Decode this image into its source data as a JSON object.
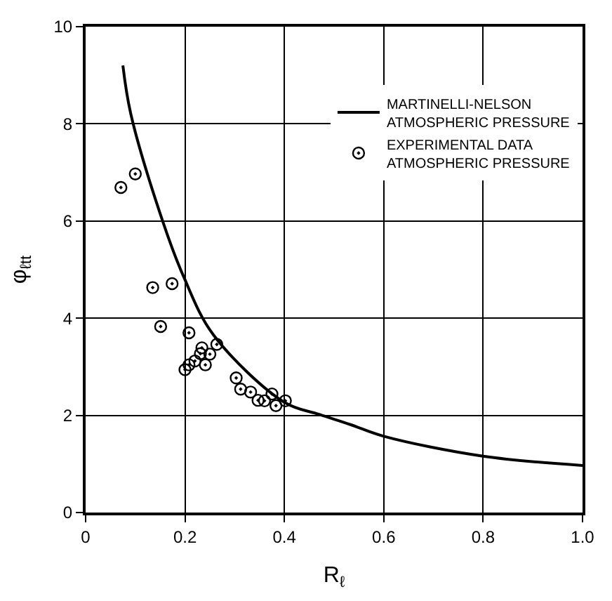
{
  "chart_data": {
    "type": "scatter",
    "xlabel": "R$_{ℓ}$",
    "ylabel": "φ$_{ℓtt}$",
    "xlim": [
      0,
      1
    ],
    "ylim": [
      0,
      10
    ],
    "xticks": [
      0,
      0.2,
      0.4,
      0.6,
      0.8,
      {
        "value": 1,
        "label": "1.0"
      }
    ],
    "yticks": [
      0,
      2,
      4,
      6,
      8,
      10
    ],
    "grid": true,
    "legend": "top right",
    "series": [
      {
        "name": "MARTINELLI-NELSON\nATMOSPHERIC PRESSURE",
        "type": "line",
        "color": "#000000",
        "marker": "none",
        "line_style": "solid",
        "x": [
          0.075,
          0.091,
          0.156,
          0.197,
          0.257,
          0.4,
          0.47,
          0.533,
          0.6,
          0.8,
          1.0
        ],
        "values": [
          9.2,
          8.2,
          5.97,
          4.86,
          3.66,
          2.27,
          2.02,
          1.81,
          1.57,
          1.16,
          0.97
        ]
      },
      {
        "name": "EXPERIMENTAL DATA\nATMOSPHERIC PRESSURE",
        "color": "#000000",
        "marker": "circle",
        "x": [
          0.071,
          0.1,
          0.135,
          0.174,
          0.151,
          0.208,
          0.264,
          0.234,
          0.231,
          0.25,
          0.22,
          0.208,
          0.2,
          0.241,
          0.303,
          0.312,
          0.332,
          0.347,
          0.36,
          0.375,
          0.383,
          0.402
        ],
        "values": [
          6.69,
          6.97,
          4.63,
          4.71,
          3.83,
          3.7,
          3.46,
          3.39,
          3.27,
          3.26,
          3.12,
          3.04,
          2.94,
          3.04,
          2.77,
          2.54,
          2.48,
          2.31,
          2.3,
          2.44,
          2.2,
          2.3
        ]
      }
    ]
  }
}
